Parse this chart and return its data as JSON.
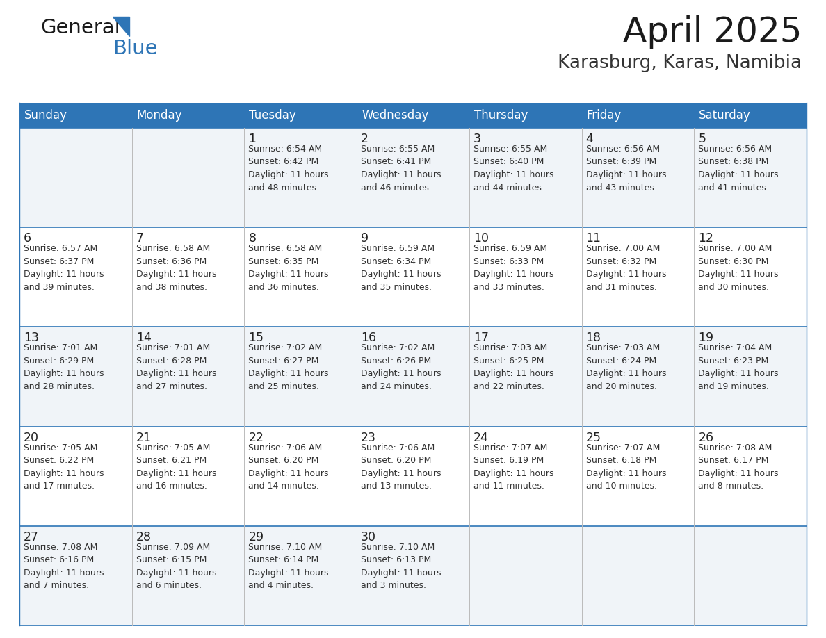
{
  "title": "April 2025",
  "subtitle": "Karasburg, Karas, Namibia",
  "header_bg": "#2E75B6",
  "header_text_color": "#FFFFFF",
  "weekdays": [
    "Sunday",
    "Monday",
    "Tuesday",
    "Wednesday",
    "Thursday",
    "Friday",
    "Saturday"
  ],
  "row_bg_odd": "#F0F4F8",
  "row_bg_even": "#FFFFFF",
  "cell_border_color": "#2E75B6",
  "day_number_color": "#222222",
  "info_text_color": "#333333",
  "calendar": [
    [
      {
        "day": "",
        "info": ""
      },
      {
        "day": "",
        "info": ""
      },
      {
        "day": "1",
        "info": "Sunrise: 6:54 AM\nSunset: 6:42 PM\nDaylight: 11 hours\nand 48 minutes."
      },
      {
        "day": "2",
        "info": "Sunrise: 6:55 AM\nSunset: 6:41 PM\nDaylight: 11 hours\nand 46 minutes."
      },
      {
        "day": "3",
        "info": "Sunrise: 6:55 AM\nSunset: 6:40 PM\nDaylight: 11 hours\nand 44 minutes."
      },
      {
        "day": "4",
        "info": "Sunrise: 6:56 AM\nSunset: 6:39 PM\nDaylight: 11 hours\nand 43 minutes."
      },
      {
        "day": "5",
        "info": "Sunrise: 6:56 AM\nSunset: 6:38 PM\nDaylight: 11 hours\nand 41 minutes."
      }
    ],
    [
      {
        "day": "6",
        "info": "Sunrise: 6:57 AM\nSunset: 6:37 PM\nDaylight: 11 hours\nand 39 minutes."
      },
      {
        "day": "7",
        "info": "Sunrise: 6:58 AM\nSunset: 6:36 PM\nDaylight: 11 hours\nand 38 minutes."
      },
      {
        "day": "8",
        "info": "Sunrise: 6:58 AM\nSunset: 6:35 PM\nDaylight: 11 hours\nand 36 minutes."
      },
      {
        "day": "9",
        "info": "Sunrise: 6:59 AM\nSunset: 6:34 PM\nDaylight: 11 hours\nand 35 minutes."
      },
      {
        "day": "10",
        "info": "Sunrise: 6:59 AM\nSunset: 6:33 PM\nDaylight: 11 hours\nand 33 minutes."
      },
      {
        "day": "11",
        "info": "Sunrise: 7:00 AM\nSunset: 6:32 PM\nDaylight: 11 hours\nand 31 minutes."
      },
      {
        "day": "12",
        "info": "Sunrise: 7:00 AM\nSunset: 6:30 PM\nDaylight: 11 hours\nand 30 minutes."
      }
    ],
    [
      {
        "day": "13",
        "info": "Sunrise: 7:01 AM\nSunset: 6:29 PM\nDaylight: 11 hours\nand 28 minutes."
      },
      {
        "day": "14",
        "info": "Sunrise: 7:01 AM\nSunset: 6:28 PM\nDaylight: 11 hours\nand 27 minutes."
      },
      {
        "day": "15",
        "info": "Sunrise: 7:02 AM\nSunset: 6:27 PM\nDaylight: 11 hours\nand 25 minutes."
      },
      {
        "day": "16",
        "info": "Sunrise: 7:02 AM\nSunset: 6:26 PM\nDaylight: 11 hours\nand 24 minutes."
      },
      {
        "day": "17",
        "info": "Sunrise: 7:03 AM\nSunset: 6:25 PM\nDaylight: 11 hours\nand 22 minutes."
      },
      {
        "day": "18",
        "info": "Sunrise: 7:03 AM\nSunset: 6:24 PM\nDaylight: 11 hours\nand 20 minutes."
      },
      {
        "day": "19",
        "info": "Sunrise: 7:04 AM\nSunset: 6:23 PM\nDaylight: 11 hours\nand 19 minutes."
      }
    ],
    [
      {
        "day": "20",
        "info": "Sunrise: 7:05 AM\nSunset: 6:22 PM\nDaylight: 11 hours\nand 17 minutes."
      },
      {
        "day": "21",
        "info": "Sunrise: 7:05 AM\nSunset: 6:21 PM\nDaylight: 11 hours\nand 16 minutes."
      },
      {
        "day": "22",
        "info": "Sunrise: 7:06 AM\nSunset: 6:20 PM\nDaylight: 11 hours\nand 14 minutes."
      },
      {
        "day": "23",
        "info": "Sunrise: 7:06 AM\nSunset: 6:20 PM\nDaylight: 11 hours\nand 13 minutes."
      },
      {
        "day": "24",
        "info": "Sunrise: 7:07 AM\nSunset: 6:19 PM\nDaylight: 11 hours\nand 11 minutes."
      },
      {
        "day": "25",
        "info": "Sunrise: 7:07 AM\nSunset: 6:18 PM\nDaylight: 11 hours\nand 10 minutes."
      },
      {
        "day": "26",
        "info": "Sunrise: 7:08 AM\nSunset: 6:17 PM\nDaylight: 11 hours\nand 8 minutes."
      }
    ],
    [
      {
        "day": "27",
        "info": "Sunrise: 7:08 AM\nSunset: 6:16 PM\nDaylight: 11 hours\nand 7 minutes."
      },
      {
        "day": "28",
        "info": "Sunrise: 7:09 AM\nSunset: 6:15 PM\nDaylight: 11 hours\nand 6 minutes."
      },
      {
        "day": "29",
        "info": "Sunrise: 7:10 AM\nSunset: 6:14 PM\nDaylight: 11 hours\nand 4 minutes."
      },
      {
        "day": "30",
        "info": "Sunrise: 7:10 AM\nSunset: 6:13 PM\nDaylight: 11 hours\nand 3 minutes."
      },
      {
        "day": "",
        "info": ""
      },
      {
        "day": "",
        "info": ""
      },
      {
        "day": "",
        "info": ""
      }
    ]
  ],
  "logo_text_general": "General",
  "logo_text_blue": "Blue",
  "logo_color_general": "#1a1a1a",
  "logo_color_blue": "#2E75B6",
  "logo_triangle_color": "#2E75B6",
  "fig_width": 11.88,
  "fig_height": 9.18,
  "dpi": 100
}
